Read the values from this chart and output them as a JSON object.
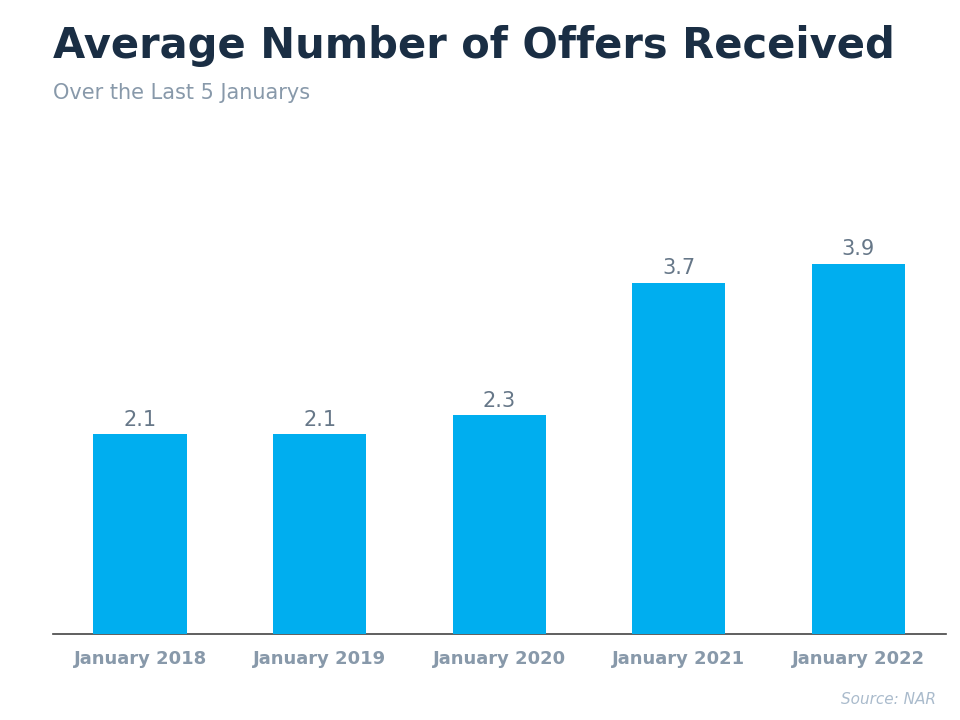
{
  "title": "Average Number of Offers Received",
  "subtitle": "Over the Last 5 Januarys",
  "source": "Source: NAR",
  "categories": [
    "January 2018",
    "January 2019",
    "January 2020",
    "January 2021",
    "January 2022"
  ],
  "values": [
    2.1,
    2.1,
    2.3,
    3.7,
    3.9
  ],
  "bar_color": "#00AEEF",
  "title_color": "#1a2e44",
  "subtitle_color": "#8899aa",
  "source_color": "#aabbcc",
  "label_color": "#667788",
  "background_color": "#ffffff",
  "top_stripe_color": "#29ABE2",
  "ylim": [
    0,
    4.25
  ],
  "title_fontsize": 30,
  "subtitle_fontsize": 15,
  "tick_fontsize": 13,
  "label_fontsize": 15,
  "source_fontsize": 11,
  "bar_width": 0.52
}
